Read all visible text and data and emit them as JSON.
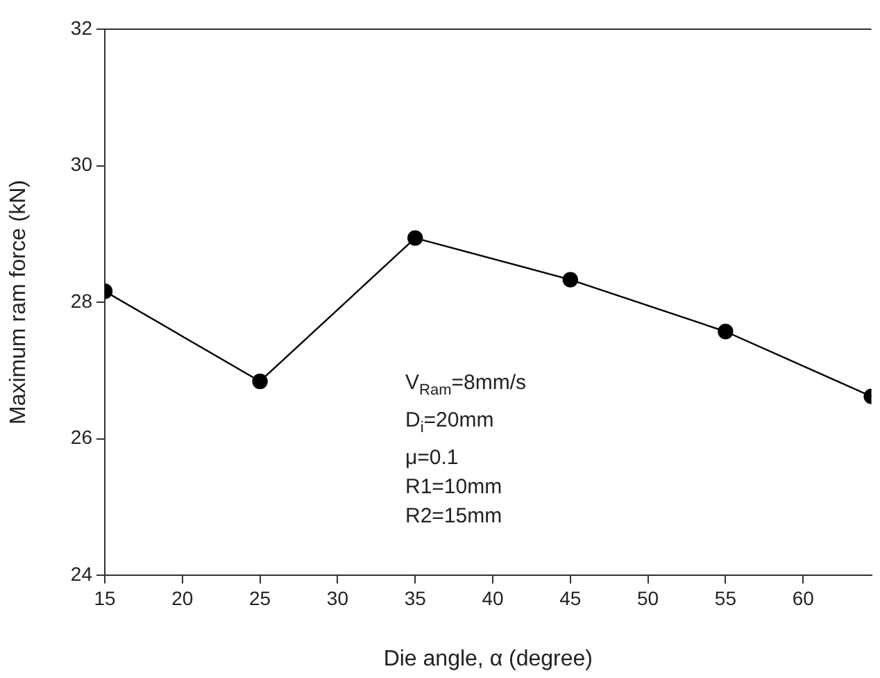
{
  "chart_data": {
    "type": "line",
    "xlabel": "Die angle, α (degree)",
    "ylabel": "Maximum ram force (kN)",
    "x": [
      15,
      25,
      35,
      45,
      55,
      64.4
    ],
    "series": [
      {
        "color": "#000000",
        "values": [
          28.16,
          26.84,
          28.94,
          28.33,
          27.57,
          26.62
        ]
      }
    ],
    "xlim": [
      15,
      64.4
    ],
    "xticks": [
      15,
      20,
      25,
      30,
      35,
      40,
      45,
      50,
      55,
      60
    ],
    "ylim": [
      24,
      32
    ],
    "yticks": [
      24,
      26,
      28,
      30,
      32
    ],
    "marker": "circle",
    "line_style": "solid",
    "grid": false,
    "legend": false,
    "annotations": [
      "V$_{Ram}$=8mm/s",
      "D$_{i}$=20mm",
      "μ=0.1",
      "R1=10mm",
      "R2=15mm"
    ]
  }
}
